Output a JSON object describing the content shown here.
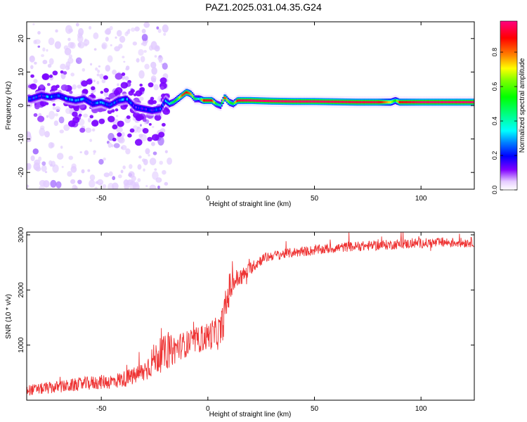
{
  "title": "PAZ1.2025.031.04.35.G24",
  "chart_data": [
    {
      "type": "heatmap",
      "xlabel": "Height of straight line (km)",
      "ylabel": "Frequency (Hz)",
      "xlim": [
        -85,
        125
      ],
      "ylim": [
        -25,
        25
      ],
      "xticks": [
        -50,
        0,
        50,
        100
      ],
      "yticks": [
        -20,
        -10,
        0,
        10,
        20
      ],
      "xtick_labels": [
        "-50",
        "0",
        "50",
        "100"
      ],
      "ytick_labels": [
        "-20",
        "-10",
        "0",
        "10",
        "20"
      ],
      "colorbar": {
        "label": "Normalized spectral amplitude",
        "range": [
          0,
          0.98
        ],
        "ticks": [
          0.0,
          0.2,
          0.4,
          0.6,
          0.8
        ],
        "tick_labels": [
          "0.0",
          "0.2",
          "0.4",
          "0.6",
          "0.8"
        ]
      },
      "ridge_frequency": {
        "x": [
          -83,
          -78,
          -74,
          -70,
          -66,
          -62,
          -58,
          -54,
          -50,
          -46,
          -42,
          -38,
          -34,
          -30,
          -26,
          -22,
          -20,
          -18,
          -16,
          -14,
          -12,
          -10,
          -8,
          -6,
          -4,
          -2,
          0,
          2,
          4,
          6,
          8,
          10,
          12,
          14,
          20,
          30,
          40,
          50,
          60,
          70,
          80,
          86,
          88,
          90,
          100,
          110,
          125
        ],
        "y": [
          2,
          3,
          2.5,
          3,
          2,
          1.5,
          2,
          0.5,
          1,
          0,
          1.5,
          2,
          -0.5,
          -1,
          -1.5,
          -1,
          1.5,
          0.5,
          1,
          2,
          3,
          4,
          3.5,
          2,
          2,
          1.5,
          1.5,
          1.5,
          0.5,
          0,
          2.5,
          1,
          0.5,
          1.5,
          1.5,
          1.3,
          1.2,
          1.2,
          1.1,
          1.0,
          1.0,
          1.0,
          1.5,
          1.0,
          1.0,
          1.0,
          1.0
        ],
        "amplitude": [
          0.25,
          0.2,
          0.3,
          0.22,
          0.3,
          0.25,
          0.3,
          0.22,
          0.28,
          0.2,
          0.25,
          0.3,
          0.15,
          0.2,
          0.2,
          0.25,
          0.3,
          0.4,
          0.5,
          0.6,
          0.85,
          0.9,
          0.8,
          0.5,
          0.35,
          0.9,
          0.95,
          0.9,
          0.5,
          0.4,
          0.9,
          0.6,
          0.5,
          0.95,
          0.98,
          0.98,
          0.98,
          0.98,
          0.96,
          0.95,
          0.95,
          0.7,
          0.5,
          0.9,
          0.98,
          0.98,
          0.98
        ]
      }
    },
    {
      "type": "line",
      "xlabel": "Height of straight line (km)",
      "ylabel": "SNR (10 * v/v)",
      "xlim": [
        -85,
        125
      ],
      "ylim": [
        0,
        3050
      ],
      "xticks": [
        -50,
        0,
        50,
        100
      ],
      "yticks": [
        1000,
        2000,
        3000
      ],
      "xtick_labels": [
        "-50",
        "0",
        "50",
        "100"
      ],
      "ytick_labels": [
        "1000",
        "2000",
        "3000"
      ],
      "series": [
        {
          "color": "#ee3333",
          "x": [
            -85,
            -80,
            -75,
            -70,
            -65,
            -60,
            -55,
            -50,
            -45,
            -40,
            -35,
            -30,
            -28,
            -26,
            -24,
            -22,
            -20,
            -18,
            -16,
            -14,
            -12,
            -10,
            -8,
            -6,
            -4,
            -2,
            0,
            2,
            4,
            6,
            8,
            10,
            12,
            14,
            16,
            18,
            20,
            22,
            25,
            28,
            30,
            35,
            40,
            45,
            50,
            55,
            60,
            65,
            70,
            75,
            80,
            85,
            90,
            95,
            100,
            105,
            110,
            115,
            120,
            125
          ],
          "y": [
            180,
            200,
            220,
            240,
            260,
            290,
            310,
            330,
            340,
            380,
            430,
            520,
            620,
            720,
            780,
            820,
            860,
            880,
            920,
            960,
            1000,
            1020,
            1050,
            1080,
            1100,
            1130,
            1160,
            1200,
            1200,
            1250,
            1600,
            2000,
            2150,
            2200,
            2250,
            2300,
            2400,
            2450,
            2550,
            2600,
            2620,
            2650,
            2680,
            2700,
            2720,
            2740,
            2760,
            2780,
            2790,
            2800,
            2810,
            2820,
            2830,
            2840,
            2850,
            2850,
            2860,
            2860,
            2860,
            2870
          ],
          "noise_amplitude": [
            100,
            100,
            110,
            110,
            120,
            120,
            130,
            130,
            140,
            150,
            160,
            200,
            260,
            280,
            300,
            320,
            320,
            300,
            280,
            260,
            240,
            240,
            240,
            240,
            240,
            260,
            260,
            280,
            300,
            320,
            360,
            320,
            240,
            180,
            160,
            140,
            120,
            110,
            100,
            100,
            90,
            90,
            90,
            90,
            90,
            90,
            90,
            90,
            90,
            90,
            90,
            90,
            90,
            90,
            90,
            90,
            90,
            90,
            90,
            90
          ]
        }
      ]
    }
  ]
}
